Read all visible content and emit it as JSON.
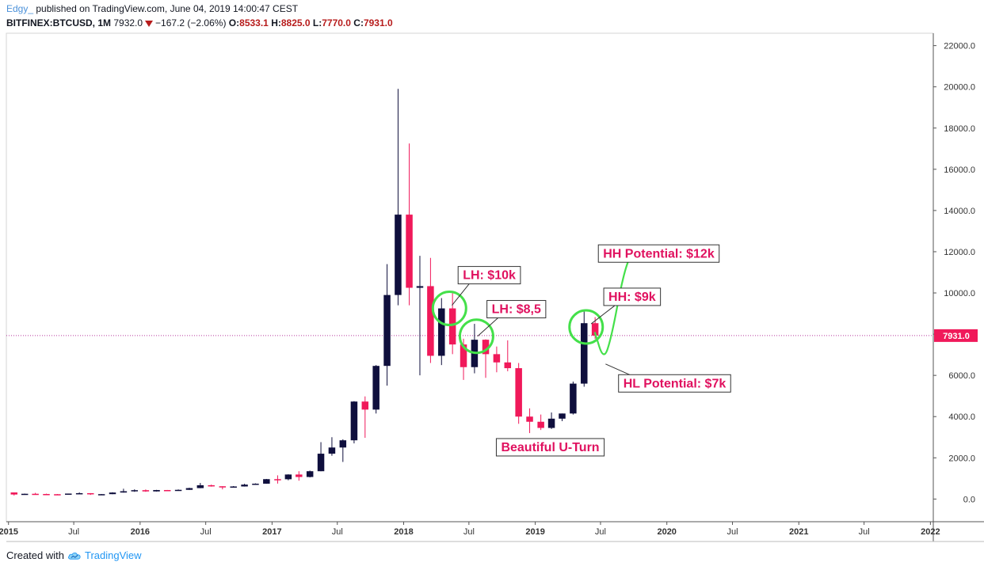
{
  "header": {
    "user": "Edgy_",
    "published": " published on TradingView.com, June 04, 2019 14:00:47 CEST",
    "symbol": "BITFINEX:BTCUSD, 1M",
    "last": "7932.0",
    "change": "−167.2 (−2.06%)",
    "o_label": "O:",
    "o_value": "8533.1",
    "h_label": "H:",
    "h_value": "8825.0",
    "l_label": "L:",
    "l_value": "7770.0",
    "c_label": "C:",
    "c_value": "7931.0"
  },
  "footer": {
    "created": "Created with",
    "brand": "TradingView"
  },
  "colors": {
    "up": "#0f0f3d",
    "down": "#f0195a",
    "circle": "#44e04a",
    "label_text": "#e0115f",
    "price_line": "#b8399f",
    "axis": "#555555"
  },
  "chart_data": {
    "type": "candlestick",
    "ylim": [
      -1100,
      22600
    ],
    "yticks": [
      0,
      2000,
      4000,
      6000,
      8000,
      10000,
      12000,
      14000,
      16000,
      18000,
      20000,
      22000
    ],
    "ytick_labels": [
      "0.0",
      "2000.0",
      "4000.0",
      "6000.0",
      "8000.0",
      "10000.0",
      "12000.0",
      "14000.0",
      "16000.0",
      "18000.0",
      "20000.0",
      "22000.0"
    ],
    "xlim": [
      "2014-12-26",
      "2022-01-09"
    ],
    "xticks": [
      "2015-01",
      "2015-07",
      "2016-01",
      "2016-07",
      "2017-01",
      "2017-07",
      "2018-01",
      "2018-07",
      "2019-01",
      "2019-07",
      "2020-01",
      "2020-07",
      "2021-01",
      "2021-07",
      "2022-01"
    ],
    "xtick_labels": [
      "2015",
      "Jul",
      "2016",
      "Jul",
      "2017",
      "Jul",
      "2018",
      "Jul",
      "2019",
      "Jul",
      "2020",
      "Jul",
      "2021",
      "Jul",
      "2022"
    ],
    "grid": false,
    "last_price_line": 7931.0,
    "last_price_label": "7931.0",
    "candles": [
      {
        "t": "2015-01",
        "o": 320,
        "h": 320,
        "l": 170,
        "c": 220
      },
      {
        "t": "2015-02",
        "o": 220,
        "h": 265,
        "l": 210,
        "c": 255
      },
      {
        "t": "2015-03",
        "o": 255,
        "h": 300,
        "l": 240,
        "c": 245
      },
      {
        "t": "2015-04",
        "o": 245,
        "h": 260,
        "l": 220,
        "c": 235
      },
      {
        "t": "2015-05",
        "o": 235,
        "h": 245,
        "l": 225,
        "c": 230
      },
      {
        "t": "2015-06",
        "o": 230,
        "h": 265,
        "l": 220,
        "c": 265
      },
      {
        "t": "2015-07",
        "o": 265,
        "h": 320,
        "l": 260,
        "c": 285
      },
      {
        "t": "2015-08",
        "o": 285,
        "h": 285,
        "l": 200,
        "c": 230
      },
      {
        "t": "2015-09",
        "o": 230,
        "h": 245,
        "l": 225,
        "c": 237
      },
      {
        "t": "2015-10",
        "o": 237,
        "h": 330,
        "l": 235,
        "c": 315
      },
      {
        "t": "2015-11",
        "o": 315,
        "h": 500,
        "l": 310,
        "c": 378
      },
      {
        "t": "2015-12",
        "o": 378,
        "h": 470,
        "l": 350,
        "c": 430
      },
      {
        "t": "2016-01",
        "o": 430,
        "h": 465,
        "l": 350,
        "c": 370
      },
      {
        "t": "2016-02",
        "o": 370,
        "h": 445,
        "l": 365,
        "c": 437
      },
      {
        "t": "2016-03",
        "o": 437,
        "h": 440,
        "l": 400,
        "c": 416
      },
      {
        "t": "2016-04",
        "o": 416,
        "h": 465,
        "l": 415,
        "c": 447
      },
      {
        "t": "2016-05",
        "o": 447,
        "h": 550,
        "l": 440,
        "c": 530
      },
      {
        "t": "2016-06",
        "o": 530,
        "h": 780,
        "l": 525,
        "c": 670
      },
      {
        "t": "2016-07",
        "o": 670,
        "h": 700,
        "l": 600,
        "c": 620
      },
      {
        "t": "2016-08",
        "o": 620,
        "h": 620,
        "l": 470,
        "c": 575
      },
      {
        "t": "2016-09",
        "o": 575,
        "h": 630,
        "l": 570,
        "c": 610
      },
      {
        "t": "2016-10",
        "o": 610,
        "h": 740,
        "l": 605,
        "c": 700
      },
      {
        "t": "2016-11",
        "o": 700,
        "h": 760,
        "l": 690,
        "c": 745
      },
      {
        "t": "2016-12",
        "o": 745,
        "h": 975,
        "l": 740,
        "c": 965
      },
      {
        "t": "2017-01",
        "o": 965,
        "h": 1150,
        "l": 750,
        "c": 960
      },
      {
        "t": "2017-02",
        "o": 960,
        "h": 1200,
        "l": 910,
        "c": 1190
      },
      {
        "t": "2017-03",
        "o": 1190,
        "h": 1350,
        "l": 890,
        "c": 1070
      },
      {
        "t": "2017-04",
        "o": 1070,
        "h": 1380,
        "l": 1050,
        "c": 1350
      },
      {
        "t": "2017-05",
        "o": 1350,
        "h": 2760,
        "l": 1350,
        "c": 2200
      },
      {
        "t": "2017-06",
        "o": 2200,
        "h": 3000,
        "l": 2100,
        "c": 2500
      },
      {
        "t": "2017-07",
        "o": 2500,
        "h": 2900,
        "l": 1800,
        "c": 2850
      },
      {
        "t": "2017-08",
        "o": 2850,
        "h": 4750,
        "l": 2700,
        "c": 4730
      },
      {
        "t": "2017-09",
        "o": 4730,
        "h": 4980,
        "l": 2970,
        "c": 4340
      },
      {
        "t": "2017-10",
        "o": 4340,
        "h": 6500,
        "l": 4150,
        "c": 6460
      },
      {
        "t": "2017-11",
        "o": 6460,
        "h": 11400,
        "l": 5500,
        "c": 9900
      },
      {
        "t": "2017-12",
        "o": 9900,
        "h": 19900,
        "l": 9400,
        "c": 13800
      },
      {
        "t": "2018-01",
        "o": 13800,
        "h": 17250,
        "l": 9400,
        "c": 10250
      },
      {
        "t": "2018-02",
        "o": 10250,
        "h": 11800,
        "l": 6000,
        "c": 10330
      },
      {
        "t": "2018-03",
        "o": 10330,
        "h": 11700,
        "l": 6600,
        "c": 6950
      },
      {
        "t": "2018-04",
        "o": 6950,
        "h": 9750,
        "l": 6500,
        "c": 9250
      },
      {
        "t": "2018-05",
        "o": 9250,
        "h": 9990,
        "l": 7030,
        "c": 7500
      },
      {
        "t": "2018-06",
        "o": 7500,
        "h": 7780,
        "l": 5780,
        "c": 6400
      },
      {
        "t": "2018-07",
        "o": 6400,
        "h": 8500,
        "l": 6100,
        "c": 7730
      },
      {
        "t": "2018-08",
        "o": 7730,
        "h": 7750,
        "l": 5880,
        "c": 7030
      },
      {
        "t": "2018-09",
        "o": 7030,
        "h": 7400,
        "l": 6150,
        "c": 6630
      },
      {
        "t": "2018-10",
        "o": 6630,
        "h": 7700,
        "l": 6200,
        "c": 6350
      },
      {
        "t": "2018-11",
        "o": 6350,
        "h": 6600,
        "l": 3650,
        "c": 4000
      },
      {
        "t": "2018-12",
        "o": 4000,
        "h": 4400,
        "l": 3200,
        "c": 3750
      },
      {
        "t": "2019-01",
        "o": 3750,
        "h": 4100,
        "l": 3350,
        "c": 3450
      },
      {
        "t": "2019-02",
        "o": 3450,
        "h": 4200,
        "l": 3400,
        "c": 3900
      },
      {
        "t": "2019-03",
        "o": 3900,
        "h": 4150,
        "l": 3780,
        "c": 4150
      },
      {
        "t": "2019-04",
        "o": 4150,
        "h": 5700,
        "l": 4100,
        "c": 5600
      },
      {
        "t": "2019-05",
        "o": 5600,
        "h": 9100,
        "l": 5450,
        "c": 8533
      },
      {
        "t": "2019-06",
        "o": 8533,
        "h": 8825,
        "l": 7770,
        "c": 7931
      }
    ],
    "annotations": [
      {
        "text": "LH: $10k",
        "date": "2018-06",
        "value": 10900,
        "anchor": "left",
        "pointer_date": "2018-05-15",
        "pointer_value": 9400
      },
      {
        "text": "LH: $8,5",
        "date": "2018-08-20",
        "value": 9250,
        "anchor": "left",
        "pointer_date": "2018-07-25",
        "pointer_value": 7900
      },
      {
        "text": "HH: $9k",
        "date": "2019-07-10",
        "value": 9850,
        "anchor": "left",
        "pointer_date": "2019-06-05",
        "pointer_value": 8500
      },
      {
        "text": "HH Potential: $12k",
        "date": "2019-06-25",
        "value": 11950,
        "anchor": "left"
      },
      {
        "text": "HL Potential: $7k",
        "date": "2019-08-20",
        "value": 5650,
        "anchor": "left",
        "pointer_date": "2019-07-15",
        "pointer_value": 6550
      },
      {
        "text": "Beautiful U-Turn",
        "date": "2018-09-15",
        "value": 2550,
        "anchor": "left"
      }
    ],
    "circles": [
      {
        "date": "2018-05-08",
        "value": 9250
      },
      {
        "date": "2018-07-22",
        "value": 7900
      },
      {
        "date": "2019-05-22",
        "value": 8350
      }
    ],
    "projection": [
      {
        "date": "2019-06-15",
        "value": 8100
      },
      {
        "date": "2019-07-10",
        "value": 6700
      },
      {
        "date": "2019-08-01",
        "value": 7900
      },
      {
        "date": "2019-09-01",
        "value": 10800
      },
      {
        "date": "2019-09-25",
        "value": 12000
      }
    ]
  }
}
